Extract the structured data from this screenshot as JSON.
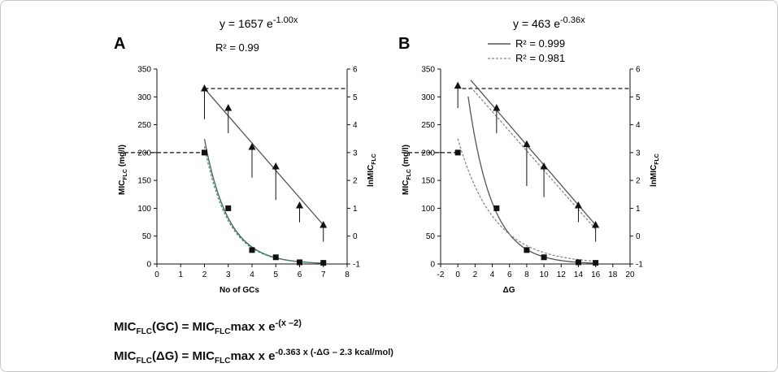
{
  "chart_data": [
    {
      "type": "scatter",
      "panel_label": "A",
      "equation": "y = 1657 e",
      "equation_exp": "-1.00x",
      "r2_lines": [
        {
          "label": "R² = 0.99",
          "style": "none"
        }
      ],
      "xlabel": "No of GCs",
      "ylabel_left_main": "MIC",
      "ylabel_left_sub": "FLC",
      "ylabel_left_unit": " (mg/l)",
      "ylabel_right_main": "lnMIC",
      "ylabel_right_sub": "FLC",
      "xlim": [
        0,
        8
      ],
      "ylim_left": [
        0,
        350
      ],
      "ylim_right": [
        -1,
        6
      ],
      "xticks": [
        "0",
        "1",
        "2",
        "3",
        "4",
        "5",
        "6",
        "7",
        "8"
      ],
      "yticks_left": [
        "0",
        "50",
        "100",
        "150",
        "200",
        "250",
        "300",
        "350"
      ],
      "yticks_right": [
        "-1",
        "0",
        "1",
        "2",
        "3",
        "4",
        "5",
        "6"
      ],
      "series": [
        {
          "marker": "square",
          "axis": "left",
          "x": [
            2,
            3,
            4,
            5,
            6,
            7
          ],
          "y": [
            200,
            100,
            25,
            12,
            3,
            2
          ]
        },
        {
          "marker": "triangle",
          "axis": "right",
          "x": [
            2,
            3,
            4,
            5,
            6,
            7
          ],
          "y": [
            5.3,
            4.6,
            3.2,
            2.5,
            1.1,
            0.4
          ],
          "err_low": [
            4.2,
            3.7,
            2.1,
            1.3,
            0.5,
            -0.2
          ]
        }
      ],
      "fits": [
        {
          "axis": "left",
          "style": "solid",
          "color": "#555555",
          "a": 1657,
          "b": -1.0,
          "x0": 2,
          "x1": 7.05
        },
        {
          "axis": "left",
          "style": "dashed",
          "color": "#2e9b6a",
          "a": 1560,
          "b": -1.0,
          "x0": 2,
          "x1": 7.05
        },
        {
          "axis": "right",
          "style": "linear",
          "color": "#555555",
          "p0": [
            2,
            5.3
          ],
          "p1": [
            7,
            0.4
          ]
        }
      ],
      "reference_lines": [
        {
          "axis": "left",
          "y": 200,
          "from": "left-axis",
          "to_x": 2
        },
        {
          "axis": "right",
          "y": 5.3,
          "from_x": 2,
          "to": "right-axis"
        }
      ]
    },
    {
      "type": "scatter",
      "panel_label": "B",
      "equation": "y = 463 e",
      "equation_exp": "-0.36x",
      "r2_lines": [
        {
          "label": "R² = 0.999",
          "style": "solid"
        },
        {
          "label": "R² = 0.981",
          "style": "dashed"
        }
      ],
      "xlabel": "ΔG",
      "ylabel_left_main": "MIC",
      "ylabel_left_sub": "FLC",
      "ylabel_left_unit": " (mg/l)",
      "ylabel_right_main": "lnMIC",
      "ylabel_right_sub": "FLC",
      "xlim": [
        -2,
        20
      ],
      "ylim_left": [
        0,
        350
      ],
      "ylim_right": [
        -1,
        6
      ],
      "xticks": [
        "-2",
        "0",
        "2",
        "4",
        "6",
        "8",
        "10",
        "12",
        "14",
        "16",
        "18",
        "20"
      ],
      "yticks_left": [
        "0",
        "50",
        "100",
        "150",
        "200",
        "250",
        "300",
        "350"
      ],
      "yticks_right": [
        "-1",
        "0",
        "1",
        "2",
        "3",
        "4",
        "5",
        "6"
      ],
      "series": [
        {
          "marker": "square",
          "axis": "left",
          "x": [
            0,
            4.5,
            8,
            10,
            14,
            16
          ],
          "y": [
            200,
            100,
            25,
            12,
            3,
            2
          ]
        },
        {
          "marker": "triangle",
          "axis": "right",
          "x": [
            0,
            4.5,
            8,
            10,
            14,
            16
          ],
          "y": [
            5.4,
            4.6,
            3.3,
            2.5,
            1.1,
            0.4
          ],
          "err_low": [
            4.6,
            3.7,
            1.8,
            1.4,
            0.5,
            -0.2
          ]
        }
      ],
      "fits": [
        {
          "axis": "left",
          "style": "solid",
          "color": "#555555",
          "a": 463,
          "b": -0.36,
          "x0": 1.2,
          "x1": 16.2
        },
        {
          "axis": "left",
          "style": "dashed",
          "color": "#888888",
          "a": 225,
          "b": -0.24,
          "x0": 0,
          "x1": 16.2
        },
        {
          "axis": "right",
          "style": "linear",
          "color": "#555555",
          "p0": [
            1.5,
            5.6
          ],
          "p1": [
            16,
            0.4
          ]
        },
        {
          "axis": "right",
          "style": "linear-dashed",
          "color": "#888888",
          "p0": [
            1.5,
            5.35
          ],
          "p1": [
            16,
            0.25
          ]
        }
      ],
      "reference_lines": [
        {
          "axis": "left",
          "y": 200,
          "from": "left-axis",
          "to_x": 0
        },
        {
          "axis": "right",
          "y": 5.3,
          "from_x": 0.5,
          "to": "right-axis"
        }
      ]
    }
  ],
  "formulas": {
    "gc": {
      "a": "MIC",
      "b": "FLC",
      "c": "(GC) =  MIC",
      "d": "FLC",
      "e": "max x e",
      "f": "-(x –2)"
    },
    "dg": {
      "a": "MIC",
      "b": "FLC",
      "c": "(ΔG)  =  MIC",
      "d": "FLC",
      "e": "max x e",
      "f": "-0.363 x (-ΔG – 2.3 kcal/mol)"
    }
  }
}
